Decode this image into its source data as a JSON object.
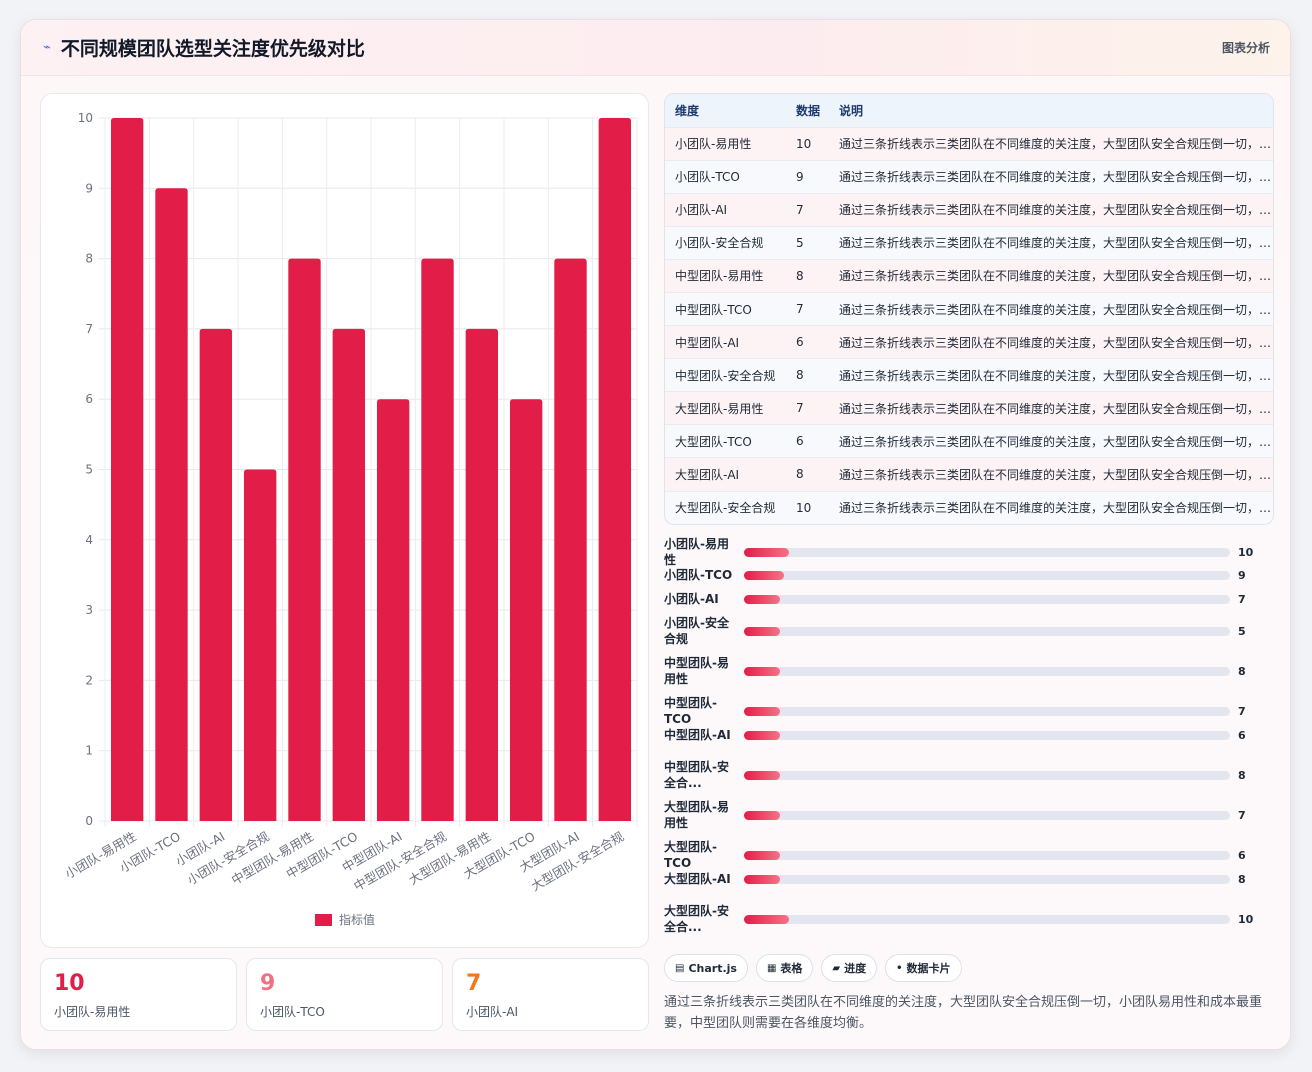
{
  "header": {
    "icon": "line-chart-icon",
    "title": "不同规模团队选型关注度优先级对比",
    "badge": "图表分析"
  },
  "chart_data": {
    "type": "bar",
    "categories": [
      "小团队-易用性",
      "小团队-TCO",
      "小团队-AI",
      "小团队-安全合规",
      "中型团队-易用性",
      "中型团队-TCO",
      "中型团队-AI",
      "中型团队-安全合规",
      "大型团队-易用性",
      "大型团队-TCO",
      "大型团队-AI",
      "大型团队-安全合规"
    ],
    "series": [
      {
        "name": "指标值",
        "values": [
          10,
          9,
          7,
          5,
          8,
          7,
          6,
          8,
          7,
          6,
          8,
          10
        ]
      }
    ],
    "ylim": [
      0,
      10
    ],
    "yticks": [
      "0",
      "1",
      "2",
      "3",
      "4",
      "5",
      "6",
      "7",
      "8",
      "9",
      "10"
    ],
    "grid": true,
    "legend": "bottom",
    "bar_color": "#e11d48"
  },
  "kpis": [
    {
      "value": "10",
      "label": "小团队-易用性",
      "color": "#e11d48"
    },
    {
      "value": "9",
      "label": "小团队-TCO",
      "color": "#f07184"
    },
    {
      "value": "7",
      "label": "小团队-AI",
      "color": "#f07a1a"
    }
  ],
  "table": {
    "headers": [
      "维度",
      "数据",
      "说明"
    ],
    "rows": [
      [
        "小团队-易用性",
        "10",
        "通过三条折线表示三类团队在不同维度的关注度，大型团队安全合规压倒一切，小团队易用性和成本最重要，中型团队则需要在各维度均衡。"
      ],
      [
        "小团队-TCO",
        "9",
        "通过三条折线表示三类团队在不同维度的关注度，大型团队安全合规压倒一切，小团队易用性和成本最重要，中型团队则需要在各维度均衡。"
      ],
      [
        "小团队-AI",
        "7",
        "通过三条折线表示三类团队在不同维度的关注度，大型团队安全合规压倒一切，小团队易用性和成本最重要，中型团队则需要在各维度均衡。"
      ],
      [
        "小团队-安全合规",
        "5",
        "通过三条折线表示三类团队在不同维度的关注度，大型团队安全合规压倒一切，小团队易用性和成本最重要，中型团队则需要在各维度均衡。"
      ],
      [
        "中型团队-易用性",
        "8",
        "通过三条折线表示三类团队在不同维度的关注度，大型团队安全合规压倒一切，小团队易用性和成本最重要，中型团队则需要在各维度均衡。"
      ],
      [
        "中型团队-TCO",
        "7",
        "通过三条折线表示三类团队在不同维度的关注度，大型团队安全合规压倒一切，小团队易用性和成本最重要，中型团队则需要在各维度均衡。"
      ],
      [
        "中型团队-AI",
        "6",
        "通过三条折线表示三类团队在不同维度的关注度，大型团队安全合规压倒一切，小团队易用性和成本最重要，中型团队则需要在各维度均衡。"
      ],
      [
        "中型团队-安全合规",
        "8",
        "通过三条折线表示三类团队在不同维度的关注度，大型团队安全合规压倒一切，小团队易用性和成本最重要，中型团队则需要在各维度均衡。"
      ],
      [
        "大型团队-易用性",
        "7",
        "通过三条折线表示三类团队在不同维度的关注度，大型团队安全合规压倒一切，小团队易用性和成本最重要，中型团队则需要在各维度均衡。"
      ],
      [
        "大型团队-TCO",
        "6",
        "通过三条折线表示三类团队在不同维度的关注度，大型团队安全合规压倒一切，小团队易用性和成本最重要，中型团队则需要在各维度均衡。"
      ],
      [
        "大型团队-AI",
        "8",
        "通过三条折线表示三类团队在不同维度的关注度，大型团队安全合规压倒一切，小团队易用性和成本最重要，中型团队则需要在各维度均衡。"
      ],
      [
        "大型团队-安全合规",
        "10",
        "通过三条折线表示三类团队在不同维度的关注度，大型团队安全合规压倒一切，小团队易用性和成本最重要，中型团队则需要在各维度均衡。"
      ]
    ]
  },
  "progress": [
    {
      "label": "小团队-易用性",
      "value": "10",
      "fill": 0.092
    },
    {
      "label": "小团队-TCO",
      "value": "9",
      "fill": 0.083
    },
    {
      "label": "小团队-AI",
      "value": "7",
      "fill": 0.074
    },
    {
      "label": "小团队-安全合规",
      "value": "5",
      "fill": 0.074
    },
    {
      "label": "中型团队-易用性",
      "value": "8",
      "fill": 0.074
    },
    {
      "label": "中型团队-TCO",
      "value": "7",
      "fill": 0.074
    },
    {
      "label": "中型团队-AI",
      "value": "6",
      "fill": 0.074
    },
    {
      "label": "中型团队-安全合...",
      "value": "8",
      "fill": 0.074
    },
    {
      "label": "大型团队-易用性",
      "value": "7",
      "fill": 0.074
    },
    {
      "label": "大型团队-TCO",
      "value": "6",
      "fill": 0.074
    },
    {
      "label": "大型团队-AI",
      "value": "8",
      "fill": 0.074
    },
    {
      "label": "大型团队-安全合...",
      "value": "10",
      "fill": 0.092
    }
  ],
  "chips": [
    {
      "icon": "chart-icon",
      "glyph": "▤",
      "label": "Chart.js"
    },
    {
      "icon": "table-icon",
      "glyph": "▦",
      "label": "表格"
    },
    {
      "icon": "progress-icon",
      "glyph": "▰",
      "label": "进度"
    },
    {
      "icon": "card-icon",
      "glyph": "•",
      "label": "数据卡片"
    }
  ],
  "note": "通过三条折线表示三类团队在不同维度的关注度，大型团队安全合规压倒一切，小团队易用性和成本最重要，中型团队则需要在各维度均衡。"
}
